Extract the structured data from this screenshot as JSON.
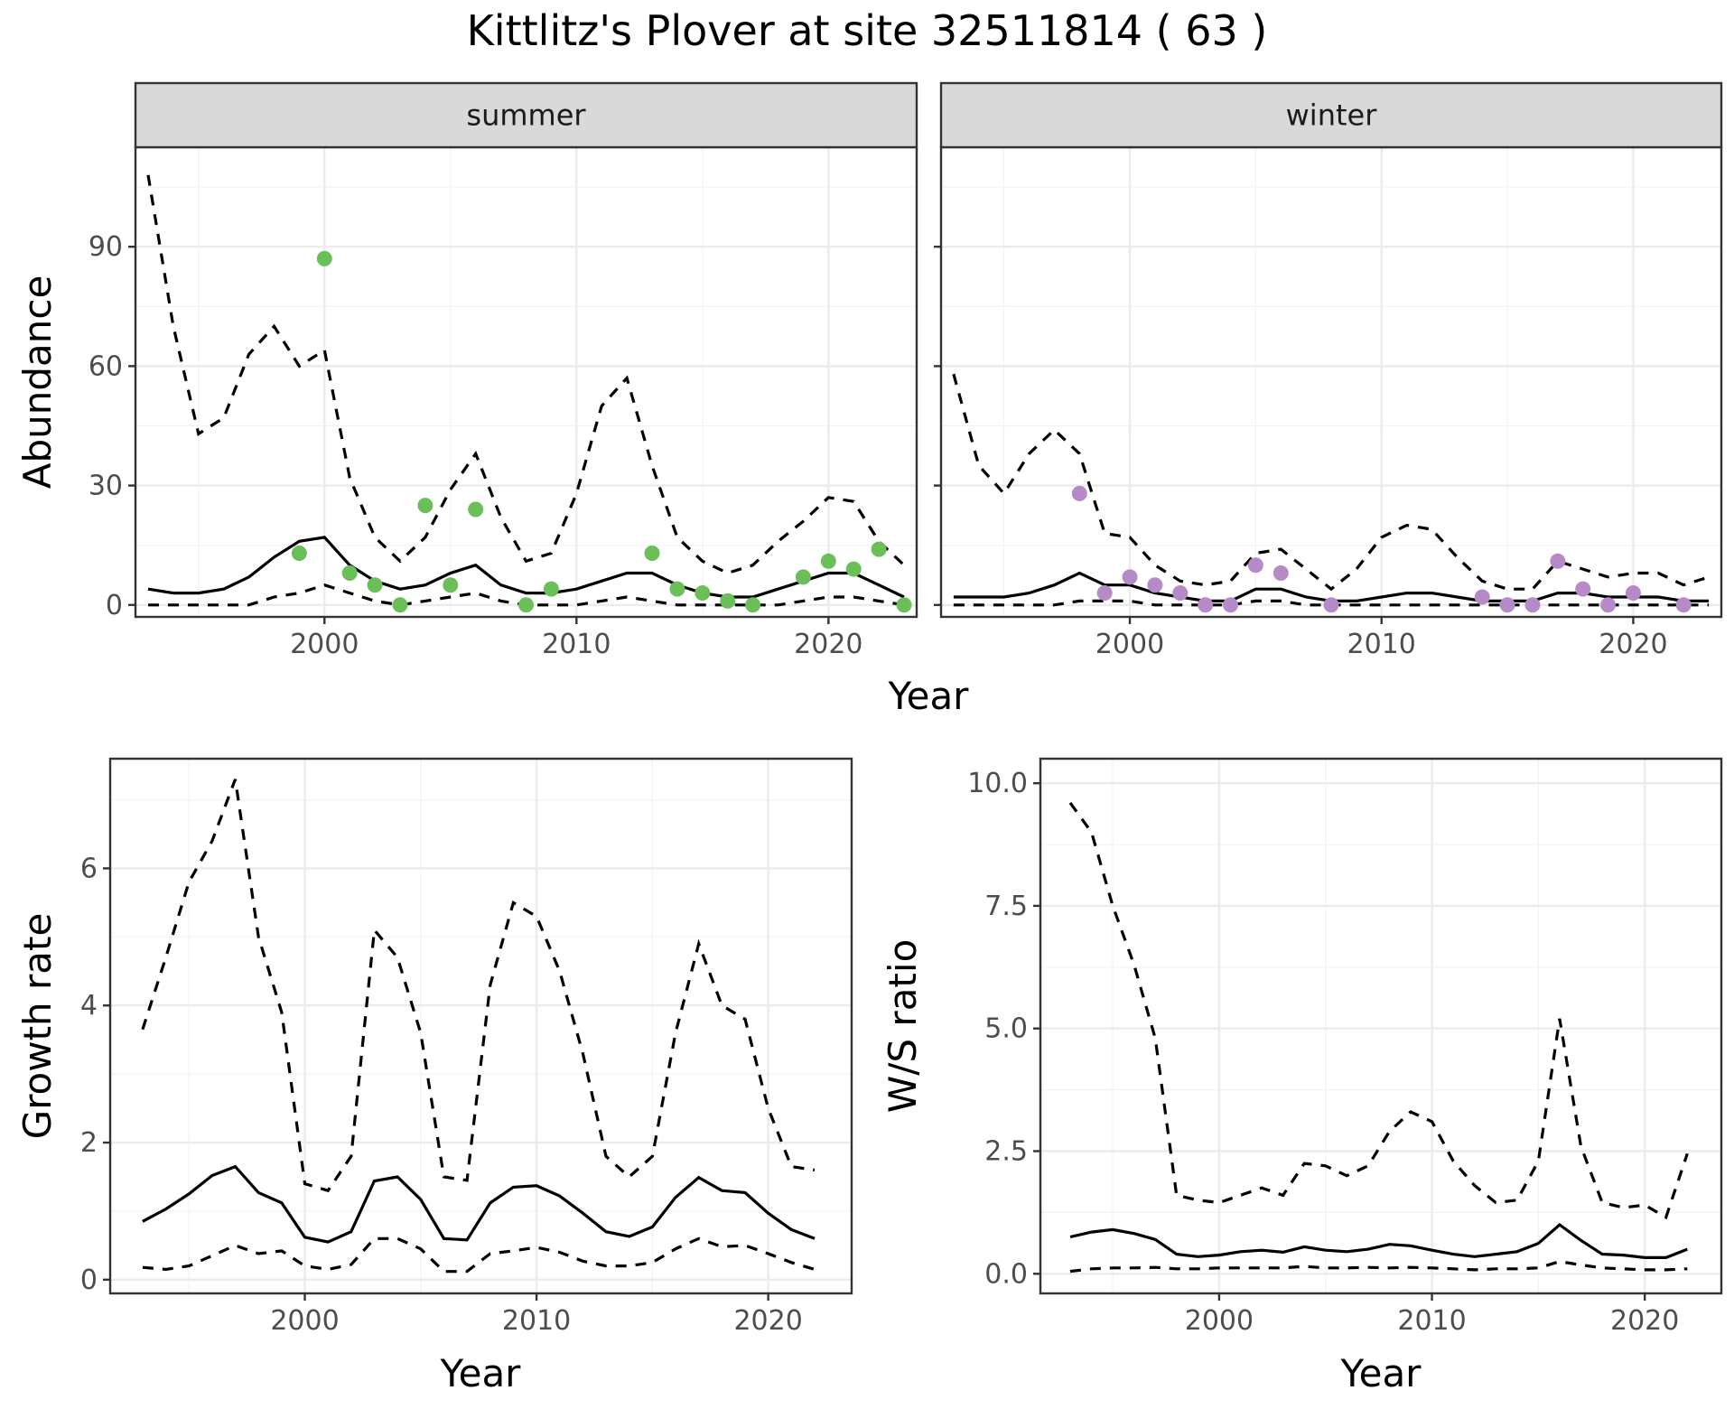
{
  "title": "Kittlitz's Plover at site 32511814 ( 63 )",
  "colors": {
    "summer_points": "#6abf59",
    "winter_points": "#b58ac7",
    "lines": "#000000"
  },
  "chart_data": [
    {
      "id": "abundance_summer",
      "type": "line",
      "facet_label": "summer",
      "ylabel": "Abundance",
      "xlabel": "Year",
      "xlim": [
        1992.5,
        2023.5
      ],
      "ylim": [
        -3,
        115
      ],
      "x_ticks": [
        2000,
        2010,
        2020
      ],
      "y_ticks": [
        0,
        30,
        60,
        90
      ],
      "grid": true,
      "x": [
        1993,
        1994,
        1995,
        1996,
        1997,
        1998,
        1999,
        2000,
        2001,
        2002,
        2003,
        2004,
        2005,
        2006,
        2007,
        2008,
        2009,
        2010,
        2011,
        2012,
        2013,
        2014,
        2015,
        2016,
        2017,
        2018,
        2019,
        2020,
        2021,
        2022,
        2023
      ],
      "series": [
        {
          "role": "mean",
          "values": [
            4,
            3,
            3,
            4,
            7,
            12,
            16,
            17,
            10,
            6,
            4,
            5,
            8,
            10,
            5,
            3,
            3,
            4,
            6,
            8,
            8,
            5,
            3,
            2,
            2,
            4,
            6,
            8,
            8,
            5,
            2
          ]
        },
        {
          "role": "upper",
          "values": [
            108,
            70,
            43,
            47,
            63,
            70,
            60,
            64,
            32,
            17,
            11,
            17,
            29,
            38,
            22,
            11,
            13,
            28,
            50,
            57,
            35,
            17,
            11,
            8,
            10,
            16,
            21,
            27,
            26,
            16,
            10
          ]
        },
        {
          "role": "lower",
          "values": [
            0,
            0,
            0,
            0,
            0,
            2,
            3,
            5,
            3,
            1,
            0,
            1,
            2,
            3,
            1,
            0,
            0,
            0,
            1,
            2,
            1,
            0,
            0,
            0,
            0,
            0,
            1,
            2,
            2,
            1,
            0
          ]
        }
      ],
      "points": {
        "x": [
          1999,
          2000,
          2001,
          2002,
          2003,
          2004,
          2005,
          2006,
          2008,
          2009,
          2013,
          2014,
          2015,
          2016,
          2017,
          2019,
          2020,
          2021,
          2022,
          2023
        ],
        "y": [
          13,
          87,
          8,
          5,
          0,
          25,
          5,
          24,
          0,
          4,
          13,
          4,
          3,
          1,
          0,
          7,
          11,
          9,
          14,
          0
        ]
      }
    },
    {
      "id": "abundance_winter",
      "type": "line",
      "facet_label": "winter",
      "xlabel": "Year",
      "xlim": [
        1992.5,
        2023.5
      ],
      "ylim": [
        -3,
        115
      ],
      "x_ticks": [
        2000,
        2010,
        2020
      ],
      "y_ticks": [
        0,
        30,
        60,
        90
      ],
      "grid": true,
      "x": [
        1993,
        1994,
        1995,
        1996,
        1997,
        1998,
        1999,
        2000,
        2001,
        2002,
        2003,
        2004,
        2005,
        2006,
        2007,
        2008,
        2009,
        2010,
        2011,
        2012,
        2013,
        2014,
        2015,
        2016,
        2017,
        2018,
        2019,
        2020,
        2021,
        2022,
        2023
      ],
      "series": [
        {
          "role": "mean",
          "values": [
            2,
            2,
            2,
            3,
            5,
            8,
            5,
            5,
            3,
            2,
            1,
            1,
            4,
            4,
            2,
            1,
            1,
            2,
            3,
            3,
            2,
            1,
            1,
            1,
            3,
            3,
            2,
            2,
            2,
            1,
            1
          ]
        },
        {
          "role": "upper",
          "values": [
            58,
            35,
            28,
            38,
            44,
            38,
            18,
            17,
            10,
            6,
            5,
            6,
            13,
            14,
            9,
            4,
            9,
            17,
            20,
            19,
            12,
            6,
            4,
            4,
            11,
            9,
            7,
            8,
            8,
            5,
            7
          ]
        },
        {
          "role": "lower",
          "values": [
            0,
            0,
            0,
            0,
            0,
            1,
            1,
            1,
            0,
            0,
            0,
            0,
            1,
            1,
            0,
            0,
            0,
            0,
            0,
            0,
            0,
            0,
            0,
            0,
            0,
            0,
            0,
            0,
            0,
            0,
            0
          ]
        }
      ],
      "points": {
        "x": [
          1998,
          1999,
          2000,
          2001,
          2002,
          2003,
          2004,
          2005,
          2006,
          2008,
          2014,
          2015,
          2016,
          2017,
          2018,
          2019,
          2020,
          2022
        ],
        "y": [
          28,
          3,
          7,
          5,
          3,
          0,
          0,
          10,
          8,
          0,
          2,
          0,
          0,
          11,
          4,
          0,
          3,
          0
        ]
      }
    },
    {
      "id": "growth_rate",
      "type": "line",
      "ylabel": "Growth rate",
      "xlabel": "Year",
      "xlim": [
        1991.6,
        2023.6
      ],
      "ylim": [
        -0.2,
        7.6
      ],
      "x_ticks": [
        2000,
        2010,
        2020
      ],
      "y_ticks": [
        0,
        2,
        4,
        6
      ],
      "grid": true,
      "x": [
        1993,
        1994,
        1995,
        1996,
        1997,
        1998,
        1999,
        2000,
        2001,
        2002,
        2003,
        2004,
        2005,
        2006,
        2007,
        2008,
        2009,
        2010,
        2011,
        2012,
        2013,
        2014,
        2015,
        2016,
        2017,
        2018,
        2019,
        2020,
        2021,
        2022
      ],
      "series": [
        {
          "role": "mean",
          "values": [
            0.85,
            1.03,
            1.25,
            1.52,
            1.65,
            1.27,
            1.12,
            0.62,
            0.55,
            0.7,
            1.44,
            1.5,
            1.17,
            0.6,
            0.58,
            1.12,
            1.35,
            1.37,
            1.22,
            0.97,
            0.7,
            0.63,
            0.77,
            1.2,
            1.49,
            1.3,
            1.27,
            0.97,
            0.73,
            0.6
          ]
        },
        {
          "role": "upper",
          "values": [
            3.65,
            4.7,
            5.8,
            6.4,
            7.3,
            5.0,
            3.9,
            1.4,
            1.3,
            1.8,
            5.1,
            4.7,
            3.6,
            1.5,
            1.45,
            4.3,
            5.5,
            5.3,
            4.5,
            3.3,
            1.8,
            1.5,
            1.8,
            3.6,
            4.9,
            4.0,
            3.8,
            2.5,
            1.65,
            1.6
          ]
        },
        {
          "role": "lower",
          "values": [
            0.18,
            0.15,
            0.2,
            0.35,
            0.5,
            0.38,
            0.42,
            0.2,
            0.15,
            0.22,
            0.6,
            0.6,
            0.45,
            0.12,
            0.12,
            0.38,
            0.42,
            0.47,
            0.4,
            0.27,
            0.2,
            0.2,
            0.25,
            0.45,
            0.6,
            0.48,
            0.5,
            0.38,
            0.25,
            0.15
          ]
        }
      ]
    },
    {
      "id": "ws_ratio",
      "type": "line",
      "ylabel": "W/S ratio",
      "xlabel": "Year",
      "xlim": [
        1991.6,
        2023.6
      ],
      "ylim": [
        -0.4,
        10.5
      ],
      "x_ticks": [
        2000,
        2010,
        2020
      ],
      "y_ticks": [
        0.0,
        2.5,
        5.0,
        7.5,
        10.0
      ],
      "y_tick_labels": [
        "0.0",
        "2.5",
        "5.0",
        "7.5",
        "10.0"
      ],
      "grid": true,
      "x": [
        1993,
        1994,
        1995,
        1996,
        1997,
        1998,
        1999,
        2000,
        2001,
        2002,
        2003,
        2004,
        2005,
        2006,
        2007,
        2008,
        2009,
        2010,
        2011,
        2012,
        2013,
        2014,
        2015,
        2016,
        2017,
        2018,
        2019,
        2020,
        2021,
        2022
      ],
      "series": [
        {
          "role": "mean",
          "values": [
            0.75,
            0.85,
            0.9,
            0.82,
            0.7,
            0.4,
            0.35,
            0.38,
            0.45,
            0.48,
            0.44,
            0.55,
            0.48,
            0.45,
            0.5,
            0.6,
            0.57,
            0.48,
            0.4,
            0.35,
            0.4,
            0.45,
            0.62,
            1.0,
            0.68,
            0.4,
            0.38,
            0.33,
            0.33,
            0.5
          ]
        },
        {
          "role": "upper",
          "values": [
            9.6,
            9.0,
            7.5,
            6.3,
            4.8,
            1.6,
            1.5,
            1.45,
            1.6,
            1.75,
            1.6,
            2.25,
            2.2,
            2.0,
            2.2,
            2.9,
            3.3,
            3.1,
            2.3,
            1.8,
            1.45,
            1.5,
            2.3,
            5.2,
            2.6,
            1.45,
            1.35,
            1.4,
            1.15,
            2.45
          ]
        },
        {
          "role": "lower",
          "values": [
            0.05,
            0.1,
            0.12,
            0.12,
            0.13,
            0.1,
            0.1,
            0.12,
            0.12,
            0.12,
            0.12,
            0.15,
            0.12,
            0.12,
            0.13,
            0.12,
            0.13,
            0.12,
            0.1,
            0.08,
            0.1,
            0.1,
            0.12,
            0.25,
            0.18,
            0.12,
            0.1,
            0.08,
            0.08,
            0.1
          ]
        }
      ]
    }
  ]
}
